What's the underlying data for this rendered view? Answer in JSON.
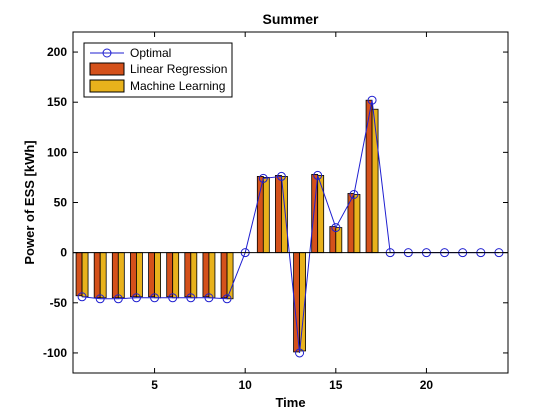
{
  "chart_data": {
    "type": "bar",
    "title": "Summer",
    "xlabel": "Time",
    "ylabel": "Power of ESS [kWh]",
    "xlim": [
      0.5,
      24.5
    ],
    "ylim": [
      -120,
      220
    ],
    "xticks": [
      5,
      10,
      15,
      20
    ],
    "yticks": [
      -100,
      -50,
      0,
      50,
      100,
      150,
      200
    ],
    "grid": false,
    "legend_position": "top-left",
    "x": [
      1,
      2,
      3,
      4,
      5,
      6,
      7,
      8,
      9,
      10,
      11,
      12,
      13,
      14,
      15,
      16,
      17,
      18,
      19,
      20,
      21,
      22,
      23,
      24
    ],
    "series": [
      {
        "name": "Optimal",
        "kind": "line-marker",
        "color": "#1f1fd0",
        "values": [
          -44,
          -46,
          -46,
          -45,
          -45,
          -45,
          -45,
          -45,
          -46,
          0,
          74,
          76,
          -100,
          77,
          25,
          58,
          152,
          0,
          0,
          0,
          0,
          0,
          0,
          0
        ]
      },
      {
        "name": "Linear Regression",
        "kind": "bar",
        "color": "#d4511b",
        "values": [
          -43,
          -45,
          -45,
          -44,
          -44,
          -44,
          -44,
          -44,
          -45,
          0,
          76,
          77,
          -99,
          78,
          26,
          59,
          152,
          0,
          0,
          0,
          0,
          0,
          0,
          0
        ]
      },
      {
        "name": "Machine Learning",
        "kind": "bar",
        "color": "#e8b21c",
        "values": [
          -44,
          -45,
          -45,
          -44,
          -45,
          -45,
          -45,
          -45,
          -46,
          0,
          75,
          76,
          -98,
          77,
          25,
          58,
          143,
          0,
          0,
          0,
          0,
          0,
          0,
          0
        ]
      }
    ]
  }
}
